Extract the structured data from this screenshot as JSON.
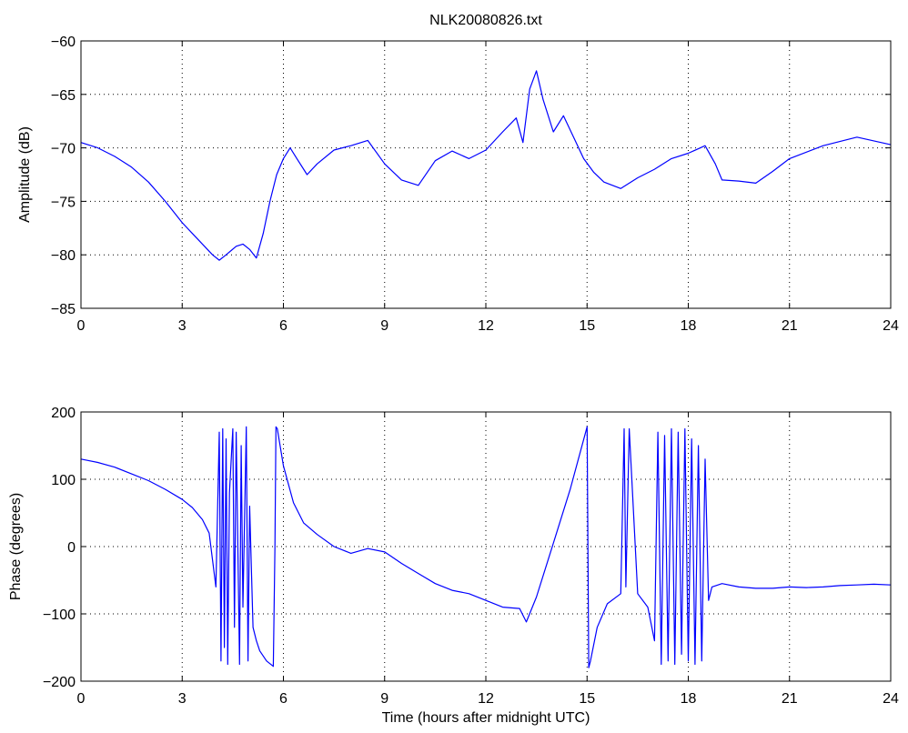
{
  "figure": {
    "title": "NLK20080826.txt"
  },
  "colors": {
    "line": "#0000ff",
    "axes": "#000000",
    "grid": "#000000",
    "background": "#ffffff"
  },
  "chart_data": [
    {
      "type": "line",
      "title": "NLK20080826.txt",
      "xlabel": "",
      "ylabel": "Amplitude (dB)",
      "xlim": [
        0,
        24
      ],
      "ylim": [
        -85,
        -60
      ],
      "xticks": [
        0,
        3,
        6,
        9,
        12,
        15,
        18,
        21,
        24
      ],
      "yticks": [
        -85,
        -80,
        -75,
        -70,
        -65,
        -60
      ],
      "xtick_labels": [
        "0",
        "3",
        "6",
        "9",
        "12",
        "15",
        "18",
        "21",
        "24"
      ],
      "ytick_labels": [
        "−85",
        "−80",
        "−75",
        "−70",
        "−65",
        "−60"
      ],
      "grid": true,
      "series": [
        {
          "x": [
            0,
            0.5,
            1,
            1.5,
            2,
            2.5,
            3,
            3.3,
            3.6,
            3.9,
            4.1,
            4.3,
            4.6,
            4.8,
            5.0,
            5.2,
            5.4,
            5.6,
            5.8,
            6.0,
            6.2,
            6.4,
            6.7,
            7.0,
            7.5,
            8.0,
            8.5,
            9.0,
            9.5,
            10.0,
            10.5,
            11.0,
            11.5,
            12.0,
            12.5,
            12.9,
            13.1,
            13.3,
            13.5,
            13.7,
            14.0,
            14.3,
            14.6,
            14.9,
            15.2,
            15.5,
            16.0,
            16.5,
            17.0,
            17.5,
            18.0,
            18.5,
            18.8,
            19.0,
            19.5,
            20.0,
            20.5,
            21.0,
            22.0,
            23.0,
            24.0
          ],
          "y": [
            -69.5,
            -70.0,
            -70.8,
            -71.8,
            -73.2,
            -75.0,
            -77.0,
            -78.0,
            -79.0,
            -80.0,
            -80.5,
            -80.0,
            -79.2,
            -79.0,
            -79.5,
            -80.3,
            -78.0,
            -75.0,
            -72.5,
            -71.0,
            -70.0,
            -71.0,
            -72.5,
            -71.5,
            -70.2,
            -69.8,
            -69.3,
            -71.5,
            -73.0,
            -73.5,
            -71.2,
            -70.3,
            -71.0,
            -70.2,
            -68.5,
            -67.2,
            -69.5,
            -64.5,
            -62.8,
            -65.5,
            -68.5,
            -67.0,
            -69.0,
            -71.0,
            -72.3,
            -73.2,
            -73.8,
            -72.8,
            -72.0,
            -71.0,
            -70.5,
            -69.8,
            -71.5,
            -73.0,
            -73.1,
            -73.3,
            -72.2,
            -71.0,
            -69.8,
            -69.0,
            -69.7
          ]
        }
      ]
    },
    {
      "type": "line",
      "title": "",
      "xlabel": "Time (hours after midnight UTC)",
      "ylabel": "Phase (degrees)",
      "xlim": [
        0,
        24
      ],
      "ylim": [
        -200,
        200
      ],
      "xticks": [
        0,
        3,
        6,
        9,
        12,
        15,
        18,
        21,
        24
      ],
      "yticks": [
        -200,
        -100,
        0,
        100,
        200
      ],
      "xtick_labels": [
        "0",
        "3",
        "6",
        "9",
        "12",
        "15",
        "18",
        "21",
        "24"
      ],
      "ytick_labels": [
        "−200",
        "−100",
        "0",
        "100",
        "200"
      ],
      "grid": true,
      "series": [
        {
          "x": [
            0,
            0.5,
            1.0,
            1.5,
            2.0,
            2.5,
            3.0,
            3.3,
            3.6,
            3.8,
            4.0,
            4.1,
            4.15,
            4.2,
            4.25,
            4.3,
            4.35,
            4.4,
            4.5,
            4.55,
            4.6,
            4.7,
            4.75,
            4.8,
            4.9,
            4.95,
            5.0,
            5.1,
            5.2,
            5.3,
            5.5,
            5.7,
            5.75,
            5.78,
            5.82,
            6.0,
            6.3,
            6.6,
            7.0,
            7.5,
            8.0,
            8.5,
            9.0,
            9.5,
            10.0,
            10.5,
            11.0,
            11.5,
            12.0,
            12.5,
            13.0,
            13.2,
            13.5,
            14.0,
            14.5,
            15.0,
            15.05,
            15.1,
            15.3,
            15.6,
            16.0,
            16.1,
            16.15,
            16.25,
            16.5,
            16.8,
            17.0,
            17.1,
            17.2,
            17.3,
            17.4,
            17.5,
            17.6,
            17.7,
            17.8,
            17.9,
            18.0,
            18.1,
            18.2,
            18.3,
            18.4,
            18.5,
            18.6,
            18.7,
            19.0,
            19.5,
            20.0,
            20.5,
            21.0,
            21.5,
            22.0,
            22.5,
            23.0,
            23.5,
            24.0
          ],
          "y": [
            130,
            125,
            118,
            108,
            98,
            85,
            70,
            58,
            40,
            20,
            -60,
            170,
            -170,
            175,
            -150,
            160,
            -175,
            80,
            175,
            -120,
            170,
            -175,
            150,
            -90,
            178,
            -170,
            60,
            -120,
            -140,
            -155,
            -170,
            -178,
            0,
            178,
            175,
            120,
            65,
            35,
            18,
            0,
            -10,
            -3,
            -8,
            -25,
            -40,
            -55,
            -65,
            -70,
            -80,
            -90,
            -92,
            -112,
            -75,
            5,
            85,
            178,
            -180,
            -170,
            -120,
            -85,
            -70,
            175,
            -60,
            175,
            -70,
            -90,
            -140,
            170,
            -175,
            165,
            -170,
            175,
            -175,
            170,
            -160,
            175,
            -170,
            160,
            -175,
            150,
            -170,
            130,
            -80,
            -60,
            -55,
            -60,
            -62,
            -62,
            -60,
            -61,
            -60,
            -58,
            -57,
            -56,
            -57
          ]
        }
      ]
    }
  ]
}
